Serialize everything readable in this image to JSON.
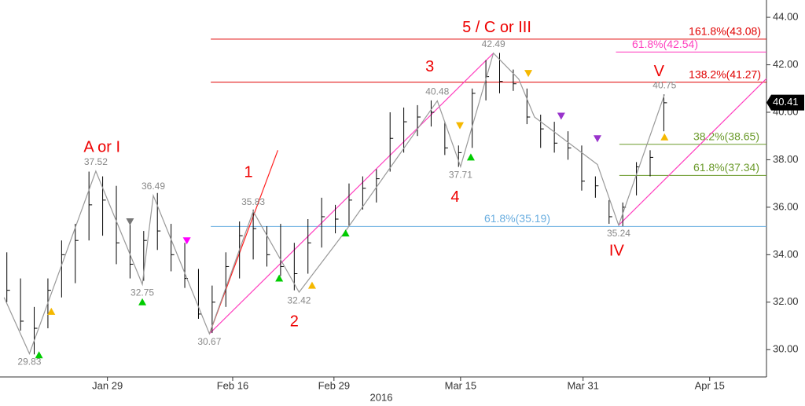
{
  "chart_data": {
    "type": "ohlc",
    "xlim": [
      0,
      112
    ],
    "xticks": [
      {
        "value": 15.7,
        "label": "Jan 29"
      },
      {
        "value": 34.0,
        "label": "Feb 16"
      },
      {
        "value": 48.8,
        "label": "Feb 29"
      },
      {
        "value": 67.3,
        "label": "Mar 15"
      },
      {
        "value": 85.2,
        "label": "Mar 31"
      },
      {
        "value": 103.7,
        "label": "Apr 15"
      }
    ],
    "x_label": "2016",
    "ylim": [
      28.85,
      44.73
    ],
    "yticks": [
      {
        "value": 30,
        "label": "30.00"
      },
      {
        "value": 32,
        "label": "32.00"
      },
      {
        "value": 34,
        "label": "34.00"
      },
      {
        "value": 36,
        "label": "36.00"
      },
      {
        "value": 38,
        "label": "38.00"
      },
      {
        "value": 40,
        "label": "40.00"
      },
      {
        "value": 42,
        "label": "42.00"
      },
      {
        "value": 44,
        "label": "44.00"
      }
    ],
    "bar_color": "#000000",
    "bars": [
      {
        "x": 1,
        "high": 34.1,
        "low": 32.0,
        "close": 32.5
      },
      {
        "x": 3,
        "high": 33.0,
        "low": 30.8,
        "close": 31.2
      },
      {
        "x": 5,
        "high": 31.8,
        "low": 29.8,
        "close": 30.9
      },
      {
        "x": 7,
        "high": 33.0,
        "low": 30.9,
        "close": 32.5
      },
      {
        "x": 9,
        "high": 34.6,
        "low": 32.2,
        "close": 34.0
      },
      {
        "x": 11,
        "high": 35.3,
        "low": 32.8,
        "close": 34.6
      },
      {
        "x": 13,
        "high": 37.5,
        "low": 34.6,
        "close": 36.1
      },
      {
        "x": 15,
        "high": 37.3,
        "low": 34.8,
        "close": 36.3
      },
      {
        "x": 17,
        "high": 36.9,
        "low": 33.6,
        "close": 34.5
      },
      {
        "x": 19,
        "high": 35.5,
        "low": 33.0,
        "close": 33.6
      },
      {
        "x": 21,
        "high": 35.0,
        "low": 32.9,
        "close": 34.6
      },
      {
        "x": 23,
        "high": 36.6,
        "low": 34.2,
        "close": 35.0
      },
      {
        "x": 25,
        "high": 35.3,
        "low": 33.3,
        "close": 34.0
      },
      {
        "x": 27,
        "high": 34.5,
        "low": 32.6,
        "close": 33.0
      },
      {
        "x": 29,
        "high": 33.4,
        "low": 31.3,
        "close": 31.5
      },
      {
        "x": 31,
        "high": 32.7,
        "low": 30.7,
        "close": 32.0
      },
      {
        "x": 33,
        "high": 34.1,
        "low": 31.8,
        "close": 33.5
      },
      {
        "x": 35,
        "high": 35.4,
        "low": 33.0,
        "close": 34.8
      },
      {
        "x": 37,
        "high": 35.9,
        "low": 33.8,
        "close": 35.1
      },
      {
        "x": 39,
        "high": 35.2,
        "low": 33.5,
        "close": 34.0
      },
      {
        "x": 41,
        "high": 35.3,
        "low": 33.1,
        "close": 33.5
      },
      {
        "x": 43,
        "high": 34.5,
        "low": 32.5,
        "close": 33.2
      },
      {
        "x": 45,
        "high": 35.5,
        "low": 33.2,
        "close": 34.5
      },
      {
        "x": 47,
        "high": 36.4,
        "low": 34.3,
        "close": 35.6
      },
      {
        "x": 49,
        "high": 36.1,
        "low": 34.9,
        "close": 35.5
      },
      {
        "x": 51,
        "high": 37.0,
        "low": 35.2,
        "close": 36.3
      },
      {
        "x": 53,
        "high": 37.3,
        "low": 35.9,
        "close": 36.8
      },
      {
        "x": 55,
        "high": 37.6,
        "low": 36.2,
        "close": 37.2
      },
      {
        "x": 57,
        "high": 40.0,
        "low": 37.5,
        "close": 38.9
      },
      {
        "x": 59,
        "high": 40.2,
        "low": 38.3,
        "close": 39.6
      },
      {
        "x": 61,
        "high": 40.3,
        "low": 39.0,
        "close": 39.8
      },
      {
        "x": 63,
        "high": 40.5,
        "low": 39.4,
        "close": 40.0
      },
      {
        "x": 65,
        "high": 39.6,
        "low": 38.2,
        "close": 38.5
      },
      {
        "x": 67,
        "high": 38.6,
        "low": 37.7,
        "close": 38.3
      },
      {
        "x": 69,
        "high": 41.0,
        "low": 38.5,
        "close": 40.8
      },
      {
        "x": 71,
        "high": 42.2,
        "low": 40.5,
        "close": 41.5
      },
      {
        "x": 73,
        "high": 42.5,
        "low": 40.8,
        "close": 41.3
      },
      {
        "x": 75,
        "high": 41.8,
        "low": 40.9,
        "close": 41.2
      },
      {
        "x": 77,
        "high": 41.0,
        "low": 39.5,
        "close": 39.8
      },
      {
        "x": 79,
        "high": 39.9,
        "low": 38.5,
        "close": 39.3
      },
      {
        "x": 81,
        "high": 39.6,
        "low": 38.3,
        "close": 38.7
      },
      {
        "x": 83,
        "high": 39.2,
        "low": 38.0,
        "close": 38.5
      },
      {
        "x": 85,
        "high": 38.6,
        "low": 36.7,
        "close": 37.1
      },
      {
        "x": 87,
        "high": 37.3,
        "low": 36.4,
        "close": 36.9
      },
      {
        "x": 89,
        "high": 36.3,
        "low": 35.3,
        "close": 35.6
      },
      {
        "x": 91,
        "high": 36.2,
        "low": 35.2,
        "close": 36.0
      },
      {
        "x": 93,
        "high": 37.9,
        "low": 36.5,
        "close": 37.7
      },
      {
        "x": 95,
        "high": 38.4,
        "low": 37.3,
        "close": 38.1
      },
      {
        "x": 97,
        "high": 40.75,
        "low": 39.2,
        "close": 40.4
      }
    ],
    "zigzag": {
      "color": "#999999",
      "x": [
        0.6,
        4.3,
        14.0,
        20.8,
        22.4,
        30.6,
        37.0,
        43.7,
        50.5,
        63.9,
        67.3,
        72.1,
        75.8,
        78.1,
        82.7,
        87.3,
        90.4,
        97.1
      ],
      "y": [
        32.2,
        29.83,
        37.52,
        32.75,
        36.49,
        30.67,
        35.83,
        32.42,
        35.0,
        40.48,
        37.71,
        42.49,
        41.4,
        39.8,
        38.8,
        37.8,
        35.24,
        40.75
      ]
    },
    "trendlines": [
      {
        "color": "#ff2020",
        "x": [
          30.6,
          40.6
        ],
        "y": [
          30.67,
          38.4
        ]
      },
      {
        "color": "#ff3fbf",
        "x": [
          30.6,
          72.1
        ],
        "y": [
          30.67,
          42.49
        ]
      },
      {
        "color": "#ff3fbf",
        "x": [
          90.4,
          112
        ],
        "y": [
          35.24,
          41.42
        ]
      }
    ],
    "levels": [
      {
        "value": 43.08,
        "label": "161.8%(43.08)",
        "color": "#e00000",
        "x_start": 30.8
      },
      {
        "value": 42.54,
        "label": "61.8%(42.54)",
        "color": "#ff3fbf",
        "x_start": 90.0
      },
      {
        "value": 41.27,
        "label": "138.2%(41.27)",
        "color": "#e00000",
        "x_start": 30.8
      },
      {
        "value": 38.65,
        "label": "38.2%(38.65)",
        "color": "#6a9a2a",
        "x_start": 90.5
      },
      {
        "value": 37.34,
        "label": "61.8%(37.34)",
        "color": "#6a9a2a",
        "x_start": 90.5
      },
      {
        "value": 35.19,
        "label": "61.8%(35.19)",
        "color": "#6aaee0",
        "x_start": 30.8
      }
    ],
    "wave_color": "#ee0000",
    "wave_labels": [
      {
        "text": "A or I",
        "x": 14.9,
        "y": 38.5
      },
      {
        "text": "1",
        "x": 36.3,
        "y": 37.45
      },
      {
        "text": "2",
        "x": 43.0,
        "y": 31.16
      },
      {
        "text": "3",
        "x": 62.8,
        "y": 41.9
      },
      {
        "text": "4",
        "x": 66.5,
        "y": 36.4
      },
      {
        "text": "5 / C or III",
        "x": 72.6,
        "y": 43.55
      },
      {
        "text": "V",
        "x": 96.3,
        "y": 41.7
      },
      {
        "text": "IV",
        "x": 90.1,
        "y": 34.14
      }
    ],
    "signals": [
      {
        "dir": "up",
        "color": "#00cc00",
        "x": 5.7,
        "y": 29.77
      },
      {
        "dir": "up",
        "color": "#f5b800",
        "x": 7.5,
        "y": 31.6
      },
      {
        "dir": "down",
        "color": "#777777",
        "x": 19.0,
        "y": 35.4
      },
      {
        "dir": "up",
        "color": "#00cc00",
        "x": 20.8,
        "y": 32.0
      },
      {
        "dir": "down",
        "color": "#ff00ff",
        "x": 27.3,
        "y": 34.6
      },
      {
        "dir": "up",
        "color": "#00cc00",
        "x": 40.8,
        "y": 33.0
      },
      {
        "dir": "up",
        "color": "#f5b800",
        "x": 45.6,
        "y": 32.7
      },
      {
        "dir": "up",
        "color": "#00cc00",
        "x": 50.5,
        "y": 34.9
      },
      {
        "dir": "down",
        "color": "#f5b800",
        "x": 67.2,
        "y": 39.45
      },
      {
        "dir": "up",
        "color": "#00cc00",
        "x": 68.8,
        "y": 38.1
      },
      {
        "dir": "down",
        "color": "#f5b800",
        "x": 77.2,
        "y": 41.65
      },
      {
        "dir": "down",
        "color": "#9933cc",
        "x": 82.0,
        "y": 39.85
      },
      {
        "dir": "down",
        "color": "#9933cc",
        "x": 87.3,
        "y": 38.9
      },
      {
        "dir": "up",
        "color": "#f5b800",
        "x": 97.1,
        "y": 38.95
      }
    ],
    "last_price": 40.41
  }
}
